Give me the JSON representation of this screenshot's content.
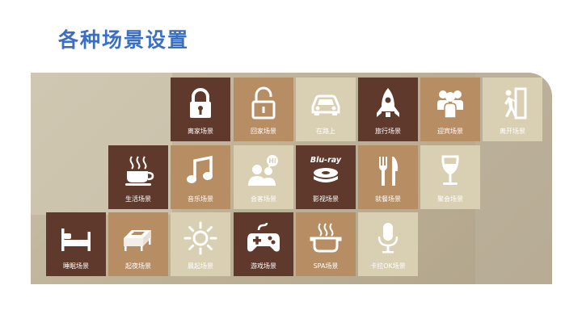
{
  "page": {
    "title": "各种场景设置"
  },
  "tiles": [
    {
      "label": "离家场景",
      "icon": "padlock-locked-icon",
      "color": "dark"
    },
    {
      "label": "回家场景",
      "icon": "padlock-unlocked-icon",
      "color": "tan"
    },
    {
      "label": "在路上",
      "icon": "car-icon",
      "color": "light"
    },
    {
      "label": "旅行场景",
      "icon": "rocket-icon",
      "color": "dark"
    },
    {
      "label": "迎宾场景",
      "icon": "guests-icon",
      "color": "tan"
    },
    {
      "label": "离开场景",
      "icon": "leaving-door-icon",
      "color": "light"
    },
    {
      "label": "生活场景",
      "icon": "coffee-cup-icon",
      "color": "dark"
    },
    {
      "label": "音乐场景",
      "icon": "music-note-icon",
      "color": "tan"
    },
    {
      "label": "会客场景",
      "icon": "conversation-icon",
      "color": "light"
    },
    {
      "label": "影视场景",
      "icon": "bluray-icon",
      "color": "dark",
      "icon_text": "Blu-ray"
    },
    {
      "label": "就餐场景",
      "icon": "fork-knife-icon",
      "color": "tan"
    },
    {
      "label": "聚会场景",
      "icon": "wine-glass-icon",
      "color": "light"
    },
    {
      "label": "睡眠场景",
      "icon": "bed-icon",
      "color": "dark"
    },
    {
      "label": "起夜场景",
      "icon": "bed-night-icon",
      "color": "tan"
    },
    {
      "label": "晨起场景",
      "icon": "sun-icon",
      "color": "light"
    },
    {
      "label": "游戏场景",
      "icon": "gamepad-icon",
      "color": "dark"
    },
    {
      "label": "SPA场景",
      "icon": "spa-bath-icon",
      "color": "light"
    },
    {
      "label": "卡拉OK场景",
      "icon": "microphone-icon",
      "color": "light"
    }
  ],
  "icon_bubble_text": "Hi",
  "colors": {
    "title": "#3a6fc4",
    "dark": "#5f3a2c",
    "tan": "#b78d64",
    "light": "#d9cfb3"
  }
}
